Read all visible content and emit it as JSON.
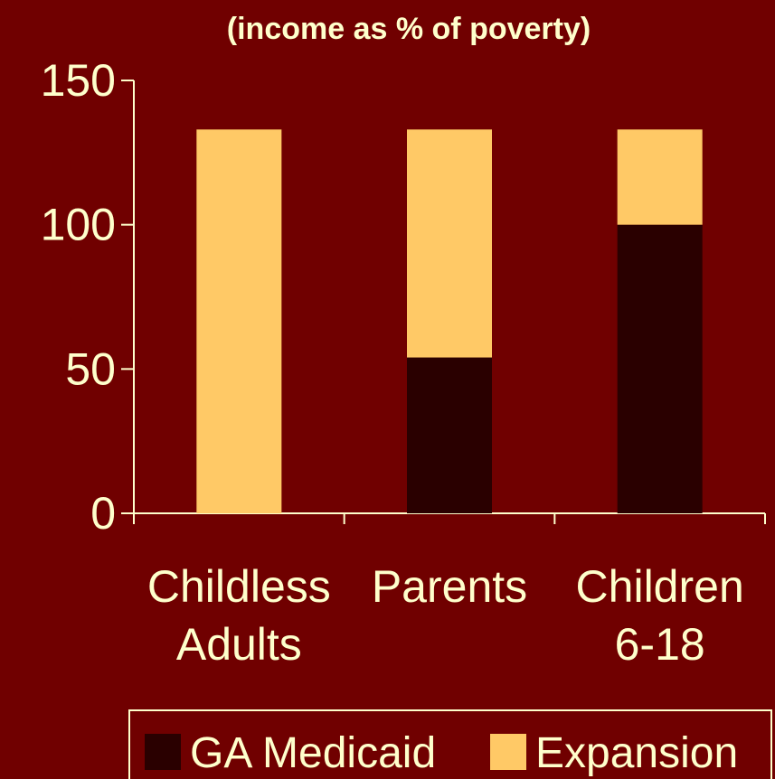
{
  "chart_data": {
    "type": "bar",
    "stacked": true,
    "title": "(income as % of poverty)",
    "categories": [
      [
        "Childless",
        "Adults"
      ],
      [
        "Parents"
      ],
      [
        "Children",
        "6-18"
      ]
    ],
    "series": [
      {
        "name": "GA Medicaid",
        "values": [
          0,
          54,
          100
        ],
        "color": "#2A0000"
      },
      {
        "name": "Expansion",
        "values": [
          133,
          79,
          33
        ],
        "color": "#FFC966"
      }
    ],
    "ylim": [
      0,
      150
    ],
    "yticks": [
      "0",
      "50",
      "100",
      "150"
    ],
    "ytick_values": [
      0,
      50,
      100,
      150
    ],
    "grid": false,
    "legend": "bottom",
    "colors": {
      "background": "#700000",
      "text": "#FFFFCC",
      "axis": "#FFFFCC"
    }
  }
}
